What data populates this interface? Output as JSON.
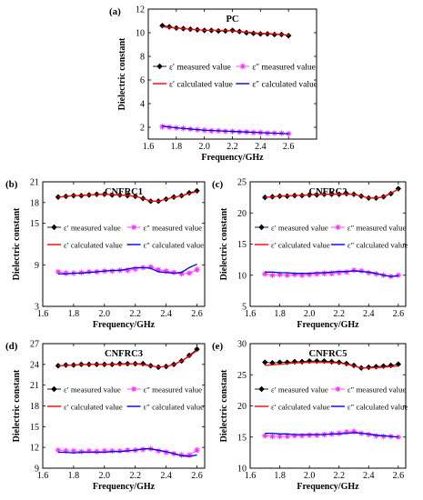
{
  "legend_labels": {
    "eps1_measured": "ε′ measured value",
    "eps2_measured": "ε″ measured value",
    "eps1_calculated": "ε′ calculated value",
    "eps2_calculated": "ε″ calculated value"
  },
  "colors": {
    "eps1_measured": "#000000",
    "eps2_measured": "#ff33ff",
    "eps1_calculated": "#ff0000",
    "eps2_calculated": "#0000ee"
  },
  "chart_data": [
    {
      "type": "line",
      "letter": "(a)",
      "title": "PC",
      "xlabel": "Frequency/GHz",
      "ylabel": "Dielectric constant",
      "xlim": [
        1.6,
        2.8
      ],
      "ylim": [
        1,
        12
      ],
      "xticks": [
        1.6,
        1.8,
        2.0,
        2.2,
        2.4,
        2.6
      ],
      "yticks": [
        2,
        4,
        6,
        8,
        10,
        12
      ],
      "ytick_labels": [
        "2",
        "4",
        "6",
        "8",
        "10",
        "12"
      ],
      "xtick_labels": [
        "1.6",
        "1.8",
        "2.0",
        "2.2",
        "2.4",
        "2.6"
      ],
      "legend": "center",
      "series": [
        {
          "name": "ε′ measured value",
          "marker": "diamond",
          "color": "#000000",
          "x": [
            1.7,
            1.75,
            1.8,
            1.85,
            1.9,
            1.95,
            2.0,
            2.05,
            2.1,
            2.15,
            2.2,
            2.25,
            2.3,
            2.35,
            2.4,
            2.45,
            2.5,
            2.55,
            2.6
          ],
          "y": [
            10.6,
            10.5,
            10.4,
            10.35,
            10.3,
            10.25,
            10.2,
            10.2,
            10.15,
            10.15,
            10.2,
            10.1,
            10.0,
            9.95,
            9.9,
            9.9,
            9.85,
            9.85,
            9.75
          ]
        },
        {
          "name": "ε′ calculated value",
          "marker": "none",
          "color": "#ff0000",
          "x": [
            1.7,
            1.8,
            1.9,
            2.0,
            2.1,
            2.2,
            2.3,
            2.4,
            2.5,
            2.6
          ],
          "y": [
            10.5,
            10.4,
            10.3,
            10.2,
            10.2,
            10.15,
            10.05,
            9.95,
            9.9,
            9.8
          ]
        },
        {
          "name": "ε″ measured value",
          "marker": "star",
          "color": "#ff33ff",
          "x": [
            1.7,
            1.75,
            1.8,
            1.85,
            1.9,
            1.95,
            2.0,
            2.05,
            2.1,
            2.15,
            2.2,
            2.25,
            2.3,
            2.35,
            2.4,
            2.45,
            2.5,
            2.55,
            2.6
          ],
          "y": [
            2.05,
            2.0,
            1.95,
            1.9,
            1.85,
            1.8,
            1.75,
            1.7,
            1.7,
            1.65,
            1.65,
            1.6,
            1.6,
            1.55,
            1.55,
            1.5,
            1.5,
            1.5,
            1.45
          ]
        },
        {
          "name": "ε″ calculated value",
          "marker": "none",
          "color": "#0000ee",
          "x": [
            1.7,
            1.8,
            1.9,
            2.0,
            2.1,
            2.2,
            2.3,
            2.4,
            2.5,
            2.6
          ],
          "y": [
            2.1,
            1.95,
            1.85,
            1.75,
            1.7,
            1.65,
            1.6,
            1.55,
            1.5,
            1.45
          ]
        }
      ]
    },
    {
      "type": "line",
      "letter": "(b)",
      "title": "CNFRC1",
      "xlabel": "Frequency/GHz",
      "ylabel": "Dielectric constant",
      "xlim": [
        1.6,
        2.65
      ],
      "ylim": [
        3,
        21
      ],
      "xticks": [
        1.6,
        1.8,
        2.0,
        2.2,
        2.4,
        2.6
      ],
      "yticks": [
        3,
        9,
        15,
        18,
        21
      ],
      "ytick_labels": [
        "3",
        "9",
        "15",
        "18",
        "21"
      ],
      "xtick_labels": [
        "1.6",
        "1.8",
        "2.0",
        "2.2",
        "2.4",
        "2.6"
      ],
      "legend": "center",
      "series": [
        {
          "name": "ε′ measured value",
          "marker": "diamond",
          "color": "#000000",
          "x": [
            1.7,
            1.75,
            1.8,
            1.85,
            1.9,
            1.95,
            2.0,
            2.05,
            2.1,
            2.15,
            2.2,
            2.25,
            2.3,
            2.35,
            2.4,
            2.45,
            2.5,
            2.55,
            2.6
          ],
          "y": [
            18.8,
            18.9,
            19.0,
            19.0,
            19.1,
            19.2,
            19.2,
            19.1,
            19.1,
            19.0,
            18.9,
            18.6,
            18.2,
            18.2,
            18.5,
            18.8,
            19.0,
            19.4,
            19.7
          ]
        },
        {
          "name": "ε′ calculated value",
          "marker": "none",
          "color": "#ff0000",
          "x": [
            1.7,
            1.8,
            1.9,
            2.0,
            2.1,
            2.2,
            2.25,
            2.3,
            2.35,
            2.4,
            2.5,
            2.6
          ],
          "y": [
            18.8,
            19.0,
            19.1,
            19.2,
            19.1,
            18.9,
            18.6,
            18.2,
            18.2,
            18.5,
            19.0,
            19.6
          ]
        },
        {
          "name": "ε″ measured value",
          "marker": "star",
          "color": "#ff33ff",
          "x": [
            1.7,
            1.75,
            1.8,
            1.85,
            1.9,
            1.95,
            2.0,
            2.05,
            2.1,
            2.15,
            2.2,
            2.25,
            2.3,
            2.35,
            2.4,
            2.45,
            2.5,
            2.55,
            2.6
          ],
          "y": [
            8.0,
            7.8,
            7.8,
            7.9,
            8.0,
            8.0,
            8.1,
            8.1,
            8.2,
            8.2,
            8.4,
            8.6,
            8.7,
            8.3,
            8.1,
            7.9,
            7.7,
            7.8,
            8.3
          ]
        },
        {
          "name": "ε″ calculated value",
          "marker": "none",
          "color": "#0000ee",
          "x": [
            1.7,
            1.75,
            1.8,
            1.85,
            1.9,
            1.95,
            2.0,
            2.05,
            2.1,
            2.15,
            2.2,
            2.25,
            2.3,
            2.35,
            2.4,
            2.45,
            2.5,
            2.55,
            2.6
          ],
          "y": [
            7.7,
            7.7,
            7.8,
            7.8,
            7.9,
            8.0,
            8.1,
            8.2,
            8.2,
            8.4,
            8.6,
            8.6,
            8.5,
            8.0,
            7.9,
            7.8,
            7.9,
            8.6,
            9.1
          ]
        }
      ]
    },
    {
      "type": "line",
      "letter": "(c)",
      "title": "CNFRC2",
      "xlabel": "Frequency/GHz",
      "ylabel": "Dielectric constant",
      "xlim": [
        1.6,
        2.65
      ],
      "ylim": [
        5,
        25
      ],
      "xticks": [
        1.6,
        1.8,
        2.0,
        2.2,
        2.4,
        2.6
      ],
      "yticks": [
        5,
        10,
        15,
        20,
        25
      ],
      "ytick_labels": [
        "5",
        "10",
        "15",
        "20",
        "25"
      ],
      "xtick_labels": [
        "1.6",
        "1.8",
        "2.0",
        "2.2",
        "2.4",
        "2.6"
      ],
      "legend": "center",
      "series": [
        {
          "name": "ε′ measured value",
          "marker": "diamond",
          "color": "#000000",
          "x": [
            1.7,
            1.75,
            1.8,
            1.85,
            1.9,
            1.95,
            2.0,
            2.05,
            2.1,
            2.15,
            2.2,
            2.25,
            2.3,
            2.35,
            2.4,
            2.45,
            2.5,
            2.55,
            2.6
          ],
          "y": [
            22.5,
            22.6,
            22.7,
            22.7,
            22.8,
            22.8,
            22.9,
            22.9,
            23.0,
            23.0,
            23.0,
            23.1,
            23.0,
            22.7,
            22.4,
            22.4,
            22.6,
            23.1,
            23.9
          ]
        },
        {
          "name": "ε′ calculated value",
          "marker": "none",
          "color": "#ff0000",
          "x": [
            1.7,
            1.8,
            1.9,
            2.0,
            2.1,
            2.2,
            2.3,
            2.35,
            2.4,
            2.45,
            2.5,
            2.6
          ],
          "y": [
            22.5,
            22.7,
            22.8,
            22.9,
            23.0,
            23.0,
            23.0,
            22.7,
            22.4,
            22.4,
            22.6,
            23.8
          ]
        },
        {
          "name": "ε″ measured value",
          "marker": "star",
          "color": "#ff33ff",
          "x": [
            1.7,
            1.75,
            1.8,
            1.85,
            1.9,
            1.95,
            2.0,
            2.05,
            2.1,
            2.15,
            2.2,
            2.25,
            2.3,
            2.35,
            2.4,
            2.45,
            2.5,
            2.55,
            2.6
          ],
          "y": [
            10.2,
            10.0,
            10.1,
            10.0,
            10.1,
            10.0,
            10.1,
            10.2,
            10.3,
            10.3,
            10.4,
            10.5,
            10.8,
            10.7,
            10.4,
            10.2,
            10.0,
            9.8,
            10.0
          ]
        },
        {
          "name": "ε″ calculated value",
          "marker": "none",
          "color": "#0000ee",
          "x": [
            1.7,
            1.75,
            1.8,
            1.85,
            1.9,
            1.95,
            2.0,
            2.05,
            2.1,
            2.15,
            2.2,
            2.25,
            2.3,
            2.35,
            2.4,
            2.45,
            2.5,
            2.55,
            2.6
          ],
          "y": [
            10.5,
            10.5,
            10.4,
            10.4,
            10.3,
            10.3,
            10.3,
            10.4,
            10.4,
            10.5,
            10.6,
            10.6,
            10.7,
            10.6,
            10.5,
            10.3,
            10.0,
            9.8,
            9.9
          ]
        }
      ]
    },
    {
      "type": "line",
      "letter": "(d)",
      "title": "CNFRC3",
      "xlabel": "Frequency/GHz",
      "ylabel": "Dielectric constant",
      "xlim": [
        1.6,
        2.65
      ],
      "ylim": [
        9,
        27
      ],
      "xticks": [
        1.6,
        1.8,
        2.0,
        2.2,
        2.4,
        2.6
      ],
      "yticks": [
        9,
        12,
        15,
        18,
        21,
        24,
        27
      ],
      "ytick_labels": [
        "9",
        "12",
        "15",
        "18",
        "21",
        "24",
        "27"
      ],
      "xtick_labels": [
        "1.6",
        "1.8",
        "2.0",
        "2.2",
        "2.4",
        "2.6"
      ],
      "legend": "center",
      "series": [
        {
          "name": "ε′ measured value",
          "marker": "diamond",
          "color": "#000000",
          "x": [
            1.7,
            1.75,
            1.8,
            1.85,
            1.9,
            1.95,
            2.0,
            2.05,
            2.1,
            2.15,
            2.2,
            2.25,
            2.3,
            2.35,
            2.4,
            2.45,
            2.5,
            2.55,
            2.6
          ],
          "y": [
            23.8,
            23.9,
            23.9,
            24.0,
            24.0,
            24.0,
            24.0,
            24.0,
            24.1,
            24.1,
            24.1,
            24.1,
            23.8,
            23.6,
            23.7,
            24.0,
            24.5,
            25.3,
            26.2
          ]
        },
        {
          "name": "ε′ calculated value",
          "marker": "none",
          "color": "#ff0000",
          "x": [
            1.7,
            1.8,
            1.9,
            2.0,
            2.1,
            2.2,
            2.3,
            2.35,
            2.4,
            2.45,
            2.5,
            2.55,
            2.6
          ],
          "y": [
            23.8,
            23.9,
            24.0,
            24.0,
            24.0,
            24.1,
            23.8,
            23.6,
            23.7,
            24.0,
            24.5,
            25.2,
            26.0
          ]
        },
        {
          "name": "ε″ measured value",
          "marker": "star",
          "color": "#ff33ff",
          "x": [
            1.7,
            1.75,
            1.8,
            1.85,
            1.9,
            1.95,
            2.0,
            2.05,
            2.1,
            2.15,
            2.2,
            2.25,
            2.3,
            2.35,
            2.4,
            2.45,
            2.5,
            2.55,
            2.6
          ],
          "y": [
            11.6,
            11.5,
            11.5,
            11.4,
            11.5,
            11.4,
            11.5,
            11.5,
            11.5,
            11.6,
            11.6,
            11.7,
            11.8,
            11.5,
            11.3,
            11.1,
            10.9,
            10.9,
            11.6
          ]
        },
        {
          "name": "ε″ calculated value",
          "marker": "none",
          "color": "#0000ee",
          "x": [
            1.7,
            1.75,
            1.8,
            1.85,
            1.9,
            1.95,
            2.0,
            2.05,
            2.1,
            2.15,
            2.2,
            2.25,
            2.3,
            2.35,
            2.4,
            2.45,
            2.5,
            2.55,
            2.6
          ],
          "y": [
            11.3,
            11.3,
            11.2,
            11.3,
            11.3,
            11.3,
            11.3,
            11.4,
            11.4,
            11.5,
            11.6,
            11.8,
            11.8,
            11.6,
            11.4,
            11.1,
            10.8,
            10.7,
            10.9
          ]
        }
      ]
    },
    {
      "type": "line",
      "letter": "(e)",
      "title": "CNFRC5",
      "xlabel": "Frequency/GHz",
      "ylabel": "Dielectric constant",
      "xlim": [
        1.6,
        2.65
      ],
      "ylim": [
        10,
        30
      ],
      "xticks": [
        1.6,
        1.8,
        2.0,
        2.2,
        2.4,
        2.6
      ],
      "yticks": [
        10,
        15,
        20,
        25,
        30
      ],
      "ytick_labels": [
        "10",
        "15",
        "20",
        "25",
        "30"
      ],
      "xtick_labels": [
        "1.6",
        "1.8",
        "2.0",
        "2.2",
        "2.4",
        "2.6"
      ],
      "legend": "center",
      "series": [
        {
          "name": "ε′ measured value",
          "marker": "diamond",
          "color": "#000000",
          "x": [
            1.7,
            1.75,
            1.8,
            1.85,
            1.9,
            1.95,
            2.0,
            2.05,
            2.1,
            2.15,
            2.2,
            2.25,
            2.3,
            2.35,
            2.4,
            2.45,
            2.5,
            2.55,
            2.6
          ],
          "y": [
            27.0,
            26.9,
            27.0,
            27.0,
            27.1,
            27.1,
            27.2,
            27.2,
            27.2,
            27.1,
            27.0,
            26.8,
            26.5,
            26.1,
            26.2,
            26.3,
            26.4,
            26.5,
            26.7
          ]
        },
        {
          "name": "ε′ calculated value",
          "marker": "none",
          "color": "#ff0000",
          "x": [
            1.7,
            1.8,
            1.9,
            2.0,
            2.1,
            2.2,
            2.25,
            2.3,
            2.35,
            2.4,
            2.5,
            2.6
          ],
          "y": [
            26.5,
            26.7,
            26.9,
            27.0,
            27.0,
            26.9,
            26.7,
            26.4,
            26.1,
            26.1,
            26.2,
            26.4
          ]
        },
        {
          "name": "ε″ measured value",
          "marker": "star",
          "color": "#ff33ff",
          "x": [
            1.7,
            1.75,
            1.8,
            1.85,
            1.9,
            1.95,
            2.0,
            2.05,
            2.1,
            2.15,
            2.2,
            2.25,
            2.3,
            2.35,
            2.4,
            2.45,
            2.5,
            2.55,
            2.6
          ],
          "y": [
            15.2,
            15.1,
            15.1,
            15.1,
            15.2,
            15.2,
            15.3,
            15.3,
            15.4,
            15.5,
            15.6,
            15.8,
            15.9,
            15.6,
            15.4,
            15.2,
            15.1,
            15.1,
            15.0
          ]
        },
        {
          "name": "ε″ calculated value",
          "marker": "none",
          "color": "#0000ee",
          "x": [
            1.7,
            1.75,
            1.8,
            1.85,
            1.9,
            1.95,
            2.0,
            2.05,
            2.1,
            2.15,
            2.2,
            2.25,
            2.3,
            2.35,
            2.4,
            2.45,
            2.5,
            2.55,
            2.6
          ],
          "y": [
            15.6,
            15.6,
            15.5,
            15.5,
            15.4,
            15.4,
            15.4,
            15.4,
            15.4,
            15.5,
            15.5,
            15.6,
            15.7,
            15.6,
            15.5,
            15.3,
            15.2,
            15.1,
            15.0
          ]
        }
      ]
    }
  ]
}
